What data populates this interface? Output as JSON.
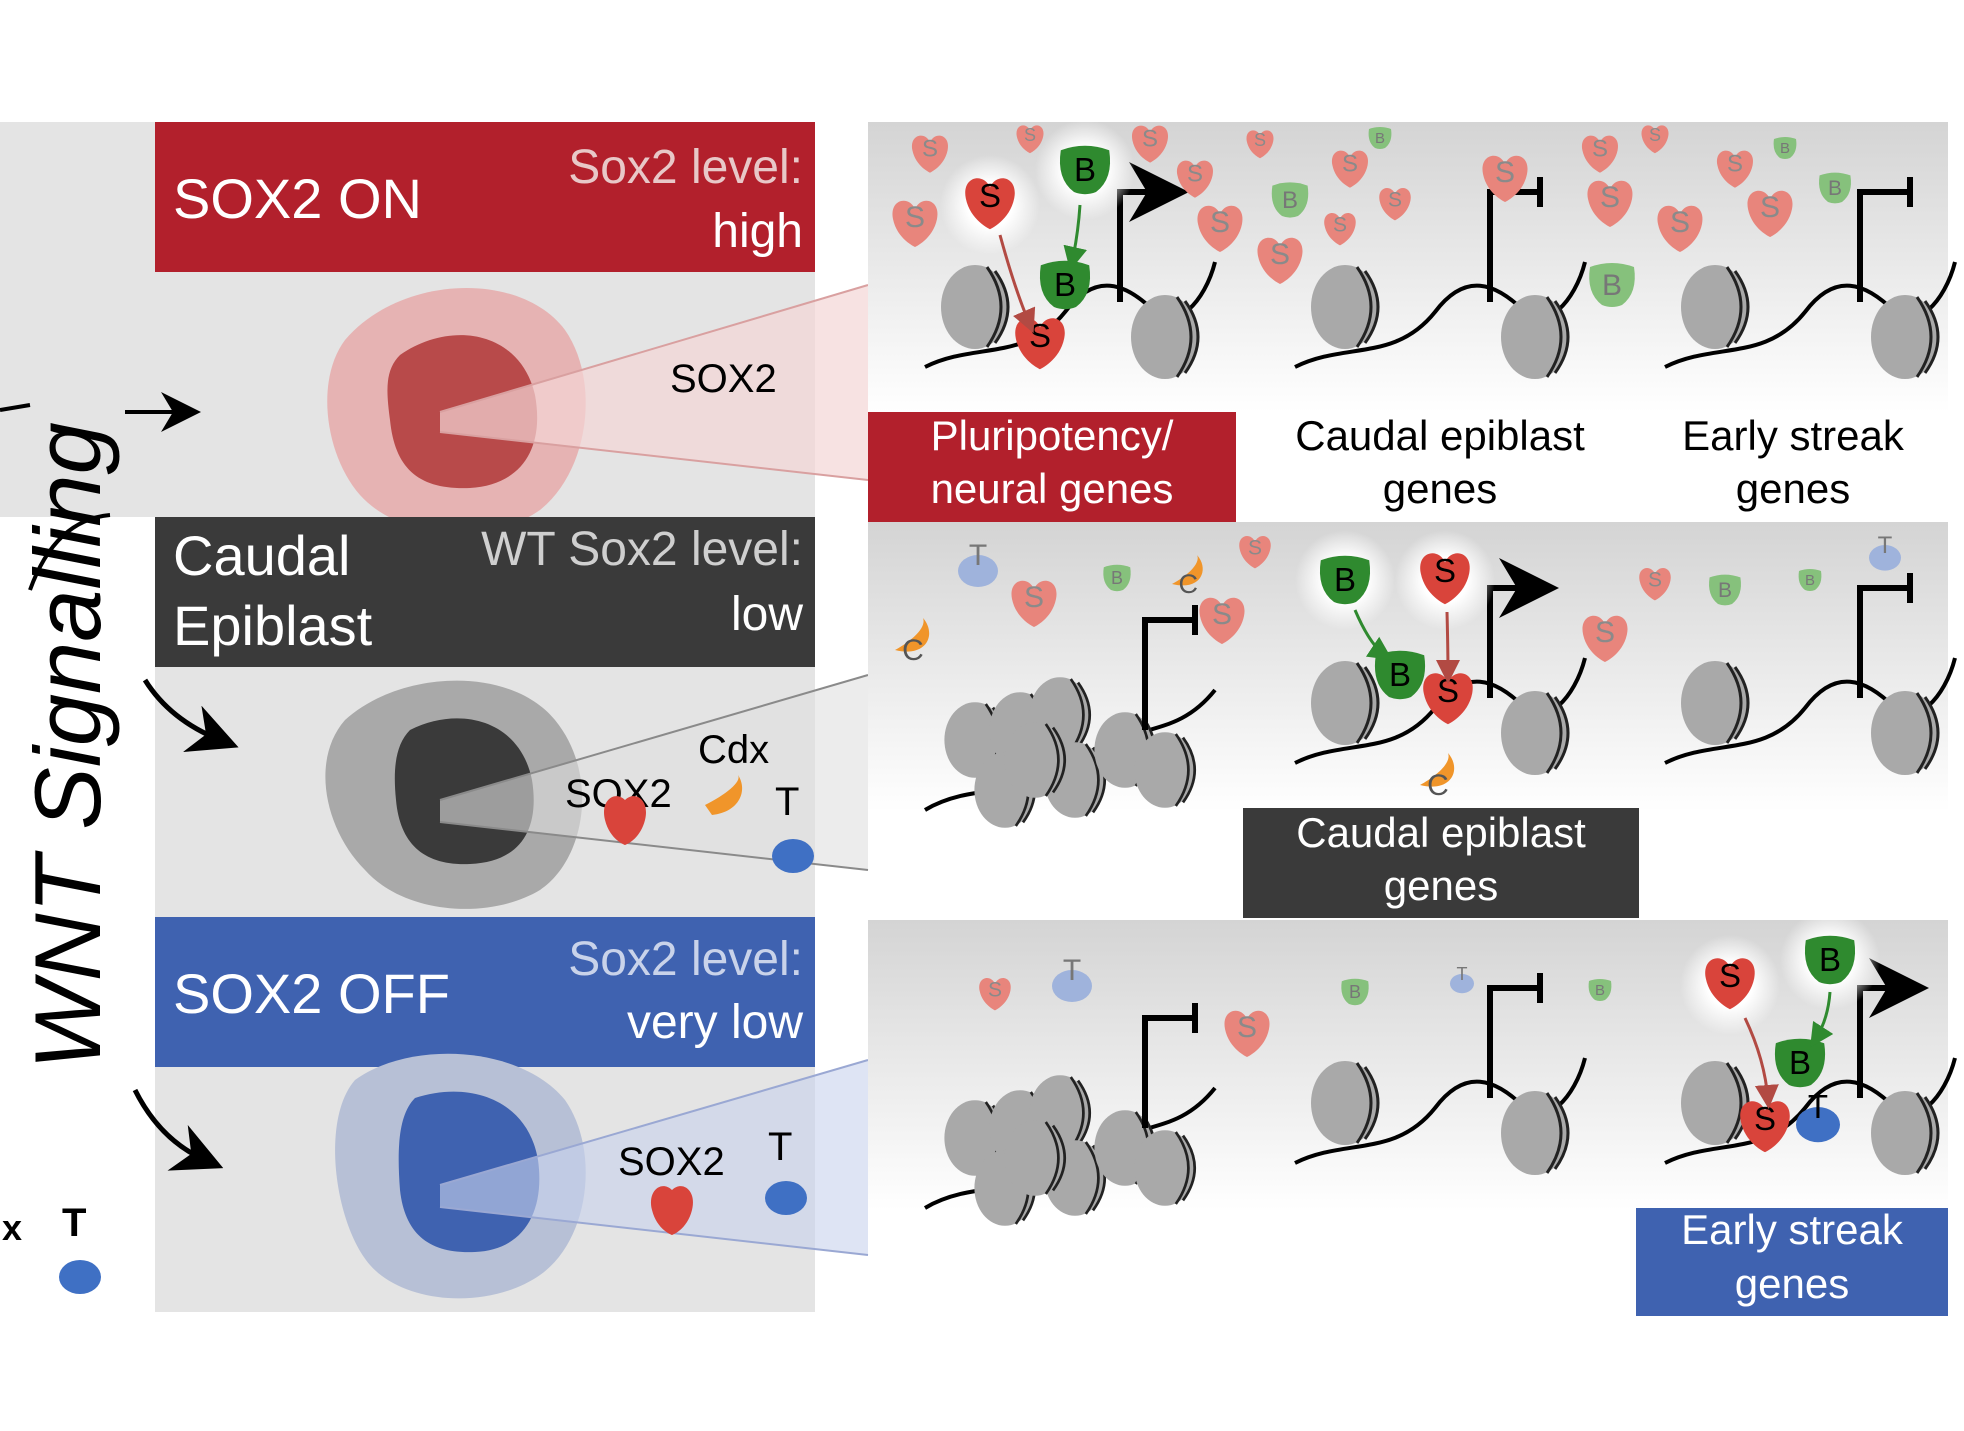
{
  "axis_label": "WNT Signalling",
  "left_key": {
    "cdx_fragment": "x",
    "t_label": "T"
  },
  "panels": [
    {
      "id": "on",
      "title": "SOX2 ON",
      "level_label": "Sox2 level:",
      "level_value": "high",
      "color": "#b2202c",
      "cell_inner_label": "SOX2"
    },
    {
      "id": "caudal",
      "title_line1": "Caudal",
      "title_line2": "Epiblast",
      "level_label": "WT Sox2 level:",
      "level_value": "low",
      "color": "#3a3a3a",
      "sox2_label": "SOX2",
      "cdx_label": "Cdx",
      "t_label": "T"
    },
    {
      "id": "off",
      "title": "SOX2 OFF",
      "level_label": "Sox2 level:",
      "level_value": "very low",
      "color": "#3f62b0",
      "sox2_label": "SOX2",
      "t_label": "T"
    }
  ],
  "gene_labels": {
    "pluripotency_line1": "Pluripotency/",
    "pluripotency_line2": "neural genes",
    "caudal_line1": "Caudal epiblast",
    "caudal_line2": "genes",
    "early_line1": "Early streak",
    "early_line2": "genes"
  },
  "factor_letters": {
    "sox2": "S",
    "bcat": "B",
    "cdx": "C",
    "t": "T"
  },
  "colors": {
    "sox2_red": "#d9443b",
    "sox2_faded": "#e8857c",
    "bcat_green": "#2f8a2f",
    "bcat_faded": "#86c17c",
    "cdx_orange": "#f0952a",
    "t_blue": "#3f70c4",
    "nucleosome": "#a9a9a9"
  }
}
